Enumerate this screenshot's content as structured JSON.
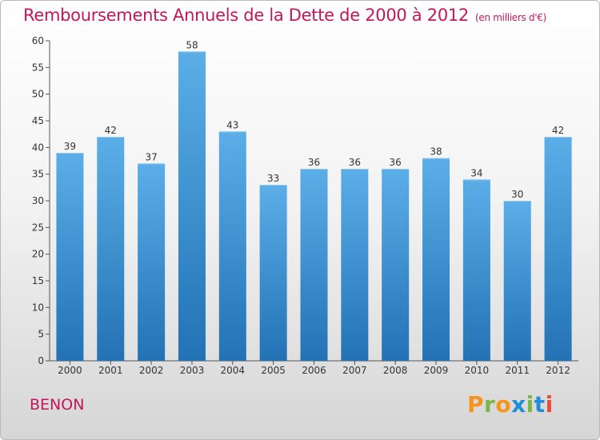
{
  "header": {
    "title": "Remboursements Annuels de la Dette de 2000 à 2012",
    "subtitle": "(en milliers d'€)"
  },
  "footer": {
    "commune": "BENON",
    "logo_text": "Proxiti"
  },
  "colors": {
    "title": "#c2185b",
    "bar_top": "#5caee8",
    "bar_bottom": "#2272b5",
    "logo": [
      "#f7941d",
      "#7ab648",
      "#f7941d",
      "#1e8fd6",
      "#7ab648",
      "#1e8fd6",
      "#e84c3d"
    ]
  },
  "chart_data": {
    "type": "bar",
    "title": "Remboursements Annuels de la Dette de 2000 à 2012",
    "subtitle": "(en milliers d'€)",
    "categories": [
      "2000",
      "2001",
      "2002",
      "2003",
      "2004",
      "2005",
      "2006",
      "2007",
      "2008",
      "2009",
      "2010",
      "2011",
      "2012"
    ],
    "values": [
      39,
      42,
      37,
      58,
      43,
      33,
      36,
      36,
      36,
      38,
      34,
      30,
      42
    ],
    "ylim": [
      0,
      60
    ],
    "yticks": [
      0,
      5,
      10,
      15,
      20,
      25,
      30,
      35,
      40,
      45,
      50,
      55,
      60
    ],
    "grid": false,
    "data_labels": true
  }
}
